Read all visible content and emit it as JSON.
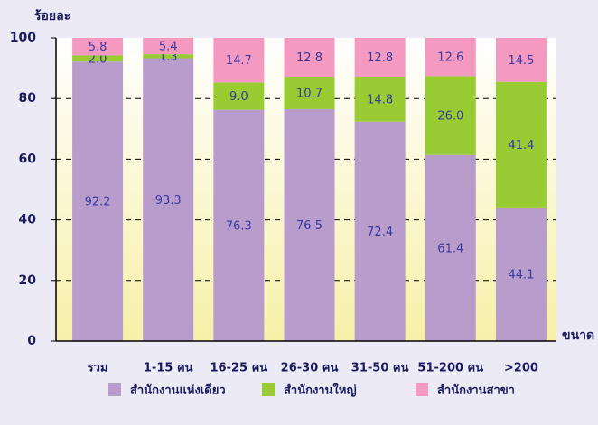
{
  "chart_data": {
    "type": "stacked_bar",
    "y_label": "ร้อยละ",
    "x_label": "ขนาด",
    "categories": [
      "รวม",
      "1-15 คน",
      "16-25 คน",
      "26-30 คน",
      "31-50 คน",
      "51-200 คน",
      ">200"
    ],
    "series": [
      {
        "name": "สำนักงานแห่งเดียว",
        "color": "#b89ccc",
        "values": [
          92.2,
          93.3,
          76.3,
          76.5,
          72.4,
          61.4,
          44.1
        ]
      },
      {
        "name": "สำนักงานใหญ่",
        "color": "#99cc33",
        "values": [
          2.0,
          1.3,
          9.0,
          10.7,
          14.8,
          26.0,
          41.4
        ],
        "value_labels": [
          "2.0",
          "1.3",
          "9.0",
          "10.7",
          "14.8",
          "26.0",
          "41.4"
        ]
      },
      {
        "name": "สำนักงานสาขา",
        "color": "#f49ac1",
        "values": [
          5.8,
          5.4,
          14.7,
          12.8,
          12.8,
          12.6,
          14.5
        ]
      }
    ],
    "ylim": [
      0,
      100
    ],
    "yticks": [
      0,
      20,
      40,
      60,
      80,
      100
    ],
    "grid": true
  }
}
